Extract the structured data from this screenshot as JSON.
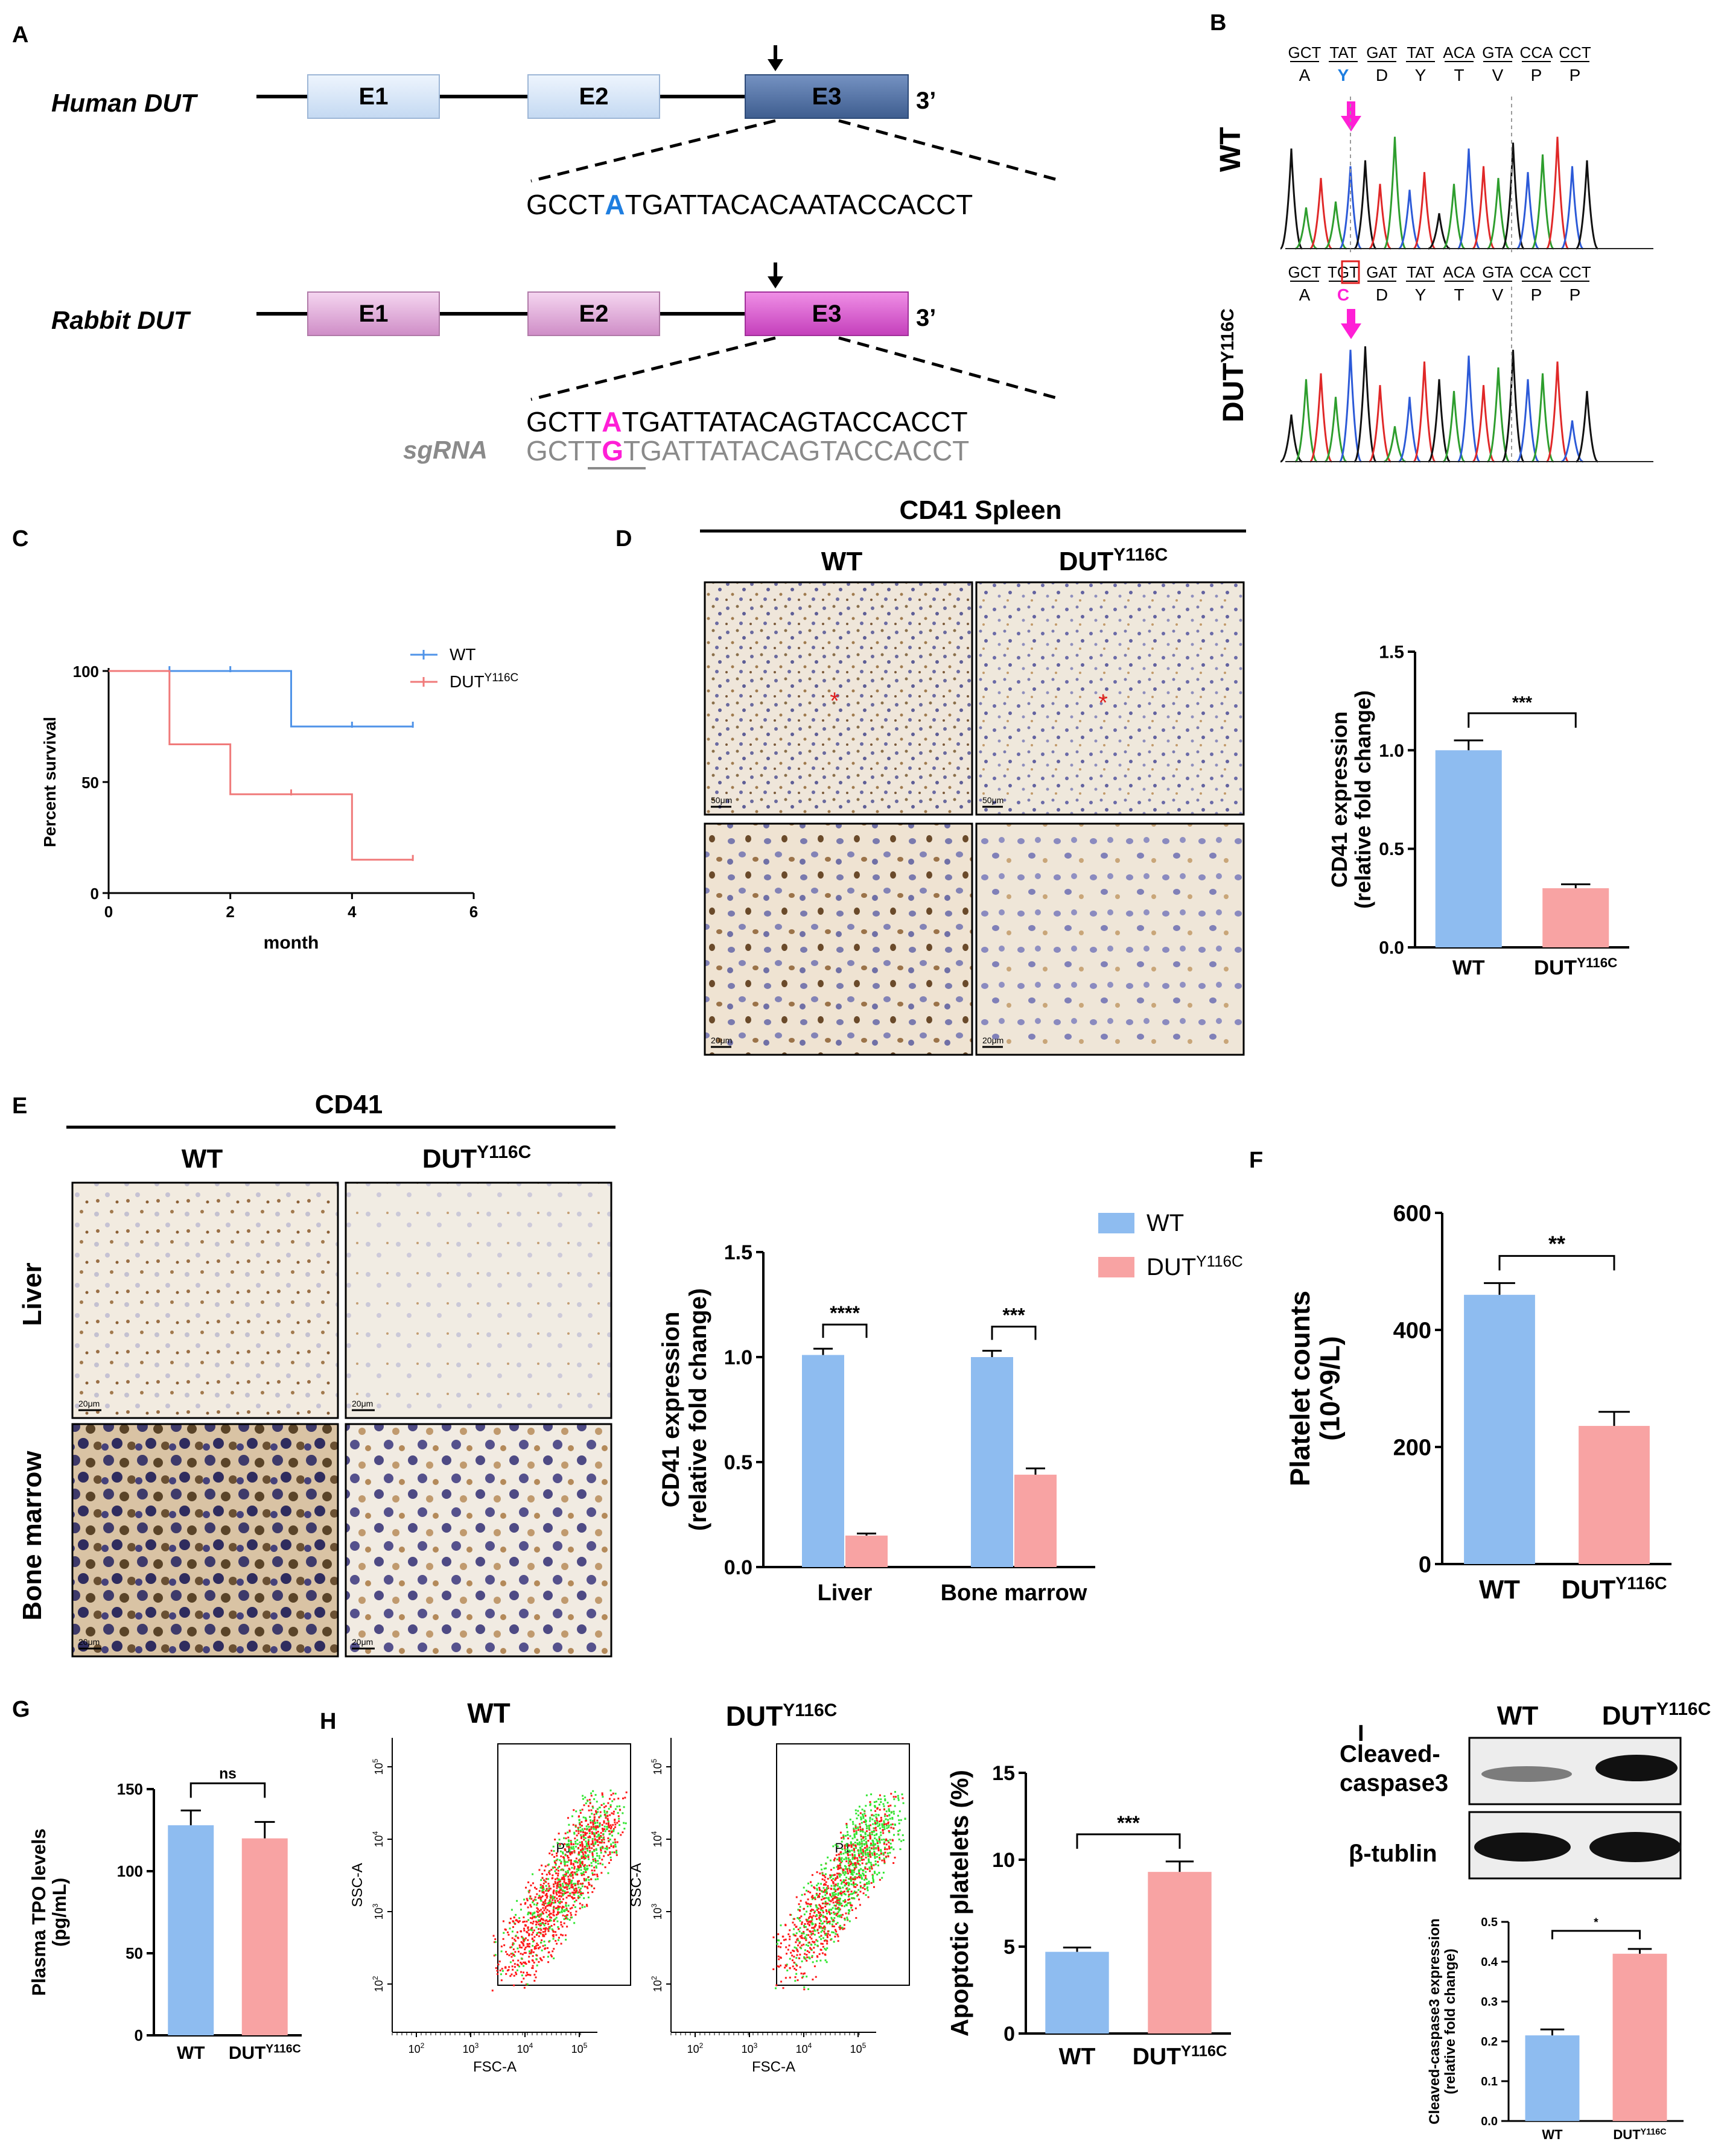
{
  "colors": {
    "wt": "#8ebcf0",
    "mut": "#f8a3a3",
    "wt_line": "#4f93e8",
    "mut_line": "#f07a7a",
    "human_exon_light": "#d7e6f7",
    "human_exon_dark": "#4f6f9e",
    "rabbit_exon_light": "#ebb5e3",
    "rabbit_exon_dark": "#d767cf",
    "magenta": "#ff1fd6",
    "blue_base": "#1e7ee0"
  },
  "panelA": {
    "label": "A",
    "human": {
      "name": "Human DUT",
      "exons": [
        "E1",
        "E2",
        "E3"
      ],
      "end": "3’",
      "seq_pre": "GCCT",
      "seq_hl": "A",
      "seq_post": "TGATTACACAATACCACCT"
    },
    "rabbit": {
      "name": "Rabbit DUT",
      "exons": [
        "E1",
        "E2",
        "E3"
      ],
      "end": "3’",
      "seq_pre": "GCTT",
      "seq_hl": "A",
      "seq_post": "TGATTATACAGTACCACCT",
      "sgrna_label": "sgRNA",
      "sg_pre": "GCT",
      "sg_mid1": "T",
      "sg_hl": "G",
      "sg_post": "TGATTATACAGTACCACCT"
    }
  },
  "panelB": {
    "label": "B",
    "wt_label": "WT",
    "mut_label_main": "DUT",
    "mut_label_sup": "Y116C",
    "codons": [
      "GCT",
      "TAT",
      "GAT",
      "TAT",
      "ACA",
      "GTA",
      "CCA",
      "CCT"
    ],
    "codons_mut": [
      "GCT",
      "TGT",
      "GAT",
      "TAT",
      "ACA",
      "GTA",
      "CCA",
      "CCT"
    ],
    "aa_wt": [
      "A",
      "Y",
      "D",
      "Y",
      "T",
      "V",
      "P",
      "P"
    ],
    "aa_mut": [
      "A",
      "C",
      "D",
      "Y",
      "T",
      "V",
      "P",
      "P"
    ]
  },
  "panelC": {
    "label": "C",
    "chart_data": {
      "type": "line",
      "subtype": "kaplan-meier",
      "xlabel": "month",
      "ylabel": "Percent survival",
      "xlim": [
        0,
        6
      ],
      "ylim": [
        0,
        100
      ],
      "xticks": [
        "0",
        "2",
        "4",
        "6"
      ],
      "yticks": [
        "0",
        "50",
        "100"
      ],
      "series": [
        {
          "name": "WT",
          "steps": [
            [
              0,
              100
            ],
            [
              3,
              100
            ],
            [
              3,
              75
            ],
            [
              5,
              75
            ]
          ],
          "censor": [
            [
              1,
              100
            ],
            [
              2,
              100
            ],
            [
              4,
              75
            ],
            [
              5,
              75
            ]
          ]
        },
        {
          "name": "DUT",
          "name_sup": "Y116C",
          "steps": [
            [
              0,
              100
            ],
            [
              1,
              100
            ],
            [
              1,
              67
            ],
            [
              2,
              67
            ],
            [
              2,
              44.5
            ],
            [
              4,
              44.5
            ],
            [
              4,
              15
            ],
            [
              5,
              15
            ]
          ],
          "censor": [
            [
              3,
              44.5
            ],
            [
              5,
              15
            ]
          ]
        }
      ]
    }
  },
  "panelD": {
    "label": "D",
    "title": "CD41 Spleen",
    "col_wt": "WT",
    "col_mut": "DUT",
    "col_mut_sup": "Y116C",
    "scale_top": "50μm",
    "scale_bottom": "20μm",
    "chart_data": {
      "type": "bar",
      "categories": [
        "WT",
        "DUT"
      ],
      "category_sup": [
        "",
        "Y116C"
      ],
      "values": [
        1.0,
        0.3
      ],
      "errors": [
        0.05,
        0.02
      ],
      "ylabel": "CD41 expression",
      "ylabel2": "(relative fold change)",
      "ylim": [
        0,
        1.5
      ],
      "yticks": [
        "0.0",
        "0.5",
        "1.0",
        "1.5"
      ],
      "sig": "***"
    }
  },
  "panelE": {
    "label": "E",
    "title": "CD41",
    "col_wt": "WT",
    "col_mut": "DUT",
    "col_mut_sup": "Y116C",
    "row_liver": "Liver",
    "row_bm": "Bone marrow",
    "scale": "20μm",
    "legend_wt": "WT",
    "legend_mut": "DUT",
    "legend_mut_sup": "Y116C",
    "chart_data": {
      "type": "bar",
      "categories": [
        "Liver",
        "Bone marrow"
      ],
      "series": [
        {
          "name": "WT",
          "values": [
            1.01,
            1.0
          ],
          "errors": [
            0.03,
            0.03
          ]
        },
        {
          "name": "DUT Y116C",
          "values": [
            0.15,
            0.44
          ],
          "errors": [
            0.01,
            0.03
          ]
        }
      ],
      "ylabel": "CD41 expression",
      "ylabel2": "(relative fold change)",
      "ylim": [
        0,
        1.5
      ],
      "yticks": [
        "0.0",
        "0.5",
        "1.0",
        "1.5"
      ],
      "sig": [
        "****",
        "***"
      ]
    }
  },
  "panelF": {
    "label": "F",
    "chart_data": {
      "type": "bar",
      "categories": [
        "WT",
        "DUT"
      ],
      "category_sup": [
        "",
        "Y116C"
      ],
      "values": [
        460,
        236
      ],
      "errors": [
        20,
        24
      ],
      "ylabel": "Platelet counts",
      "ylabel2": "(10^9/L)",
      "ylim": [
        0,
        600
      ],
      "yticks": [
        "0",
        "200",
        "400",
        "600"
      ],
      "sig": "**"
    }
  },
  "panelG": {
    "label": "G",
    "chart_data": {
      "type": "bar",
      "categories": [
        "WT",
        "DUT"
      ],
      "category_sup": [
        "",
        "Y116C"
      ],
      "values": [
        128,
        120
      ],
      "errors": [
        9,
        10
      ],
      "ylabel": "Plasma TPO levels",
      "ylabel2": "(pg/mL)",
      "ylim": [
        0,
        150
      ],
      "yticks": [
        "0",
        "50",
        "100",
        "150"
      ],
      "sig": "ns"
    }
  },
  "panelH": {
    "label": "H",
    "plot_wt": "WT",
    "plot_mut": "DUT",
    "plot_mut_sup": "Y116C",
    "gate": "P1",
    "xaxis": "FSC-A",
    "yaxis": "SSC-A",
    "log_ticks": [
      "10",
      "10",
      "10",
      "10"
    ],
    "log_exps": [
      "2",
      "3",
      "4",
      "5"
    ],
    "chart_data": {
      "type": "bar",
      "categories": [
        "WT",
        "DUT"
      ],
      "category_sup": [
        "",
        "Y116C"
      ],
      "values": [
        4.7,
        9.3
      ],
      "errors": [
        0.25,
        0.6
      ],
      "ylabel": "Apoptotic platelets (%)",
      "ylim": [
        0,
        15
      ],
      "yticks": [
        "0",
        "5",
        "10",
        "15"
      ],
      "sig": "***"
    }
  },
  "panelI": {
    "label": "I",
    "col_wt": "WT",
    "col_mut": "DUT",
    "col_mut_sup": "Y116C",
    "blot1_line1": "Cleaved-",
    "blot1_line2": "caspase3",
    "blot2": "β-tublin",
    "chart_data": {
      "type": "bar",
      "categories": [
        "WT",
        "DUT"
      ],
      "category_sup": [
        "",
        "Y116C"
      ],
      "values": [
        0.215,
        0.42
      ],
      "errors": [
        0.015,
        0.012
      ],
      "ylabel": "Cleaved-caspase3 expression",
      "ylabel2": "(relative fold change)",
      "ylim": [
        0,
        0.5
      ],
      "yticks": [
        "0.0",
        "0.1",
        "0.2",
        "0.3",
        "0.4",
        "0.5"
      ],
      "sig": "*"
    }
  }
}
